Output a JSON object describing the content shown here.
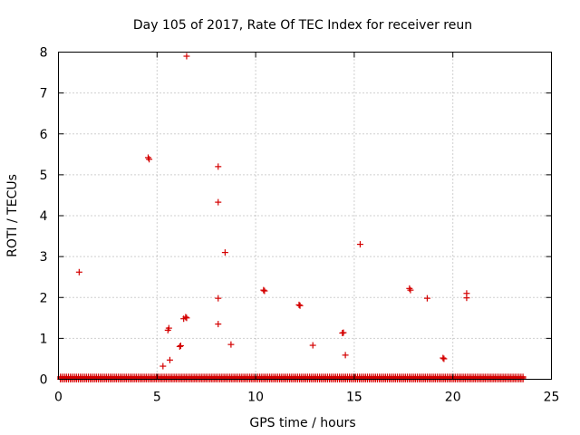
{
  "chart_data": {
    "type": "scatter",
    "title": "Day 105 of 2017, Rate Of TEC Index for receiver reun",
    "xlabel": "GPS time / hours",
    "ylabel": "ROTI / TECUs",
    "xlim": [
      0,
      25
    ],
    "ylim": [
      0,
      8
    ],
    "xticks": [
      "0",
      "5",
      "10",
      "15",
      "20",
      "25"
    ],
    "yticks": [
      "0",
      "1",
      "2",
      "3",
      "4",
      "5",
      "6",
      "7",
      "8"
    ],
    "grid": true,
    "marker": "plus",
    "color": "#d40000",
    "baseline_band": {
      "x_start": 0.1,
      "x_end": 23.6,
      "y_max": 0.06
    },
    "points": [
      [
        1.05,
        2.62
      ],
      [
        4.55,
        5.42
      ],
      [
        4.6,
        5.38
      ],
      [
        5.3,
        0.32
      ],
      [
        5.55,
        1.2
      ],
      [
        5.6,
        1.25
      ],
      [
        5.65,
        0.47
      ],
      [
        6.15,
        0.8
      ],
      [
        6.2,
        0.82
      ],
      [
        6.35,
        1.48
      ],
      [
        6.45,
        1.52
      ],
      [
        6.5,
        1.5
      ],
      [
        6.5,
        7.9
      ],
      [
        8.1,
        5.2
      ],
      [
        8.1,
        4.33
      ],
      [
        8.1,
        1.98
      ],
      [
        8.1,
        1.35
      ],
      [
        8.45,
        3.1
      ],
      [
        8.75,
        0.85
      ],
      [
        10.4,
        2.18
      ],
      [
        10.45,
        2.16
      ],
      [
        12.2,
        1.82
      ],
      [
        12.25,
        1.8
      ],
      [
        12.9,
        0.83
      ],
      [
        14.4,
        1.13
      ],
      [
        14.45,
        1.14
      ],
      [
        14.55,
        0.59
      ],
      [
        15.3,
        3.3
      ],
      [
        17.8,
        2.22
      ],
      [
        17.85,
        2.18
      ],
      [
        18.7,
        1.98
      ],
      [
        19.5,
        0.52
      ],
      [
        19.55,
        0.5
      ],
      [
        20.7,
        2.1
      ],
      [
        20.7,
        1.99
      ]
    ]
  }
}
